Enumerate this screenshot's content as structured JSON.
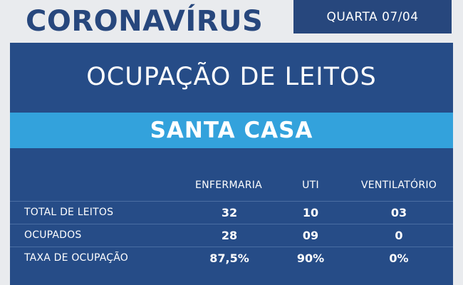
{
  "header": {
    "brand": "CORONAVÍRUS",
    "date": "QUARTA 07/04"
  },
  "panel": {
    "title": "OCUPAÇÃO DE LEITOS",
    "hospital": "SANTA CASA"
  },
  "table": {
    "columns": [
      "ENFERMARIA",
      "UTI",
      "VENTILATÓRIO"
    ],
    "rows": [
      {
        "label": "TOTAL DE LEITOS",
        "values": [
          "32",
          "10",
          "03"
        ]
      },
      {
        "label": "OCUPADOS",
        "values": [
          "28",
          "09",
          "0"
        ]
      },
      {
        "label": "TAXA DE OCUPAÇÃO",
        "values": [
          "87,5%",
          "90%",
          "0%"
        ]
      }
    ]
  },
  "colors": {
    "background": "#e9ebee",
    "navy": "#27477d",
    "panel": "#264c87",
    "accent_band": "#33a2dc"
  }
}
